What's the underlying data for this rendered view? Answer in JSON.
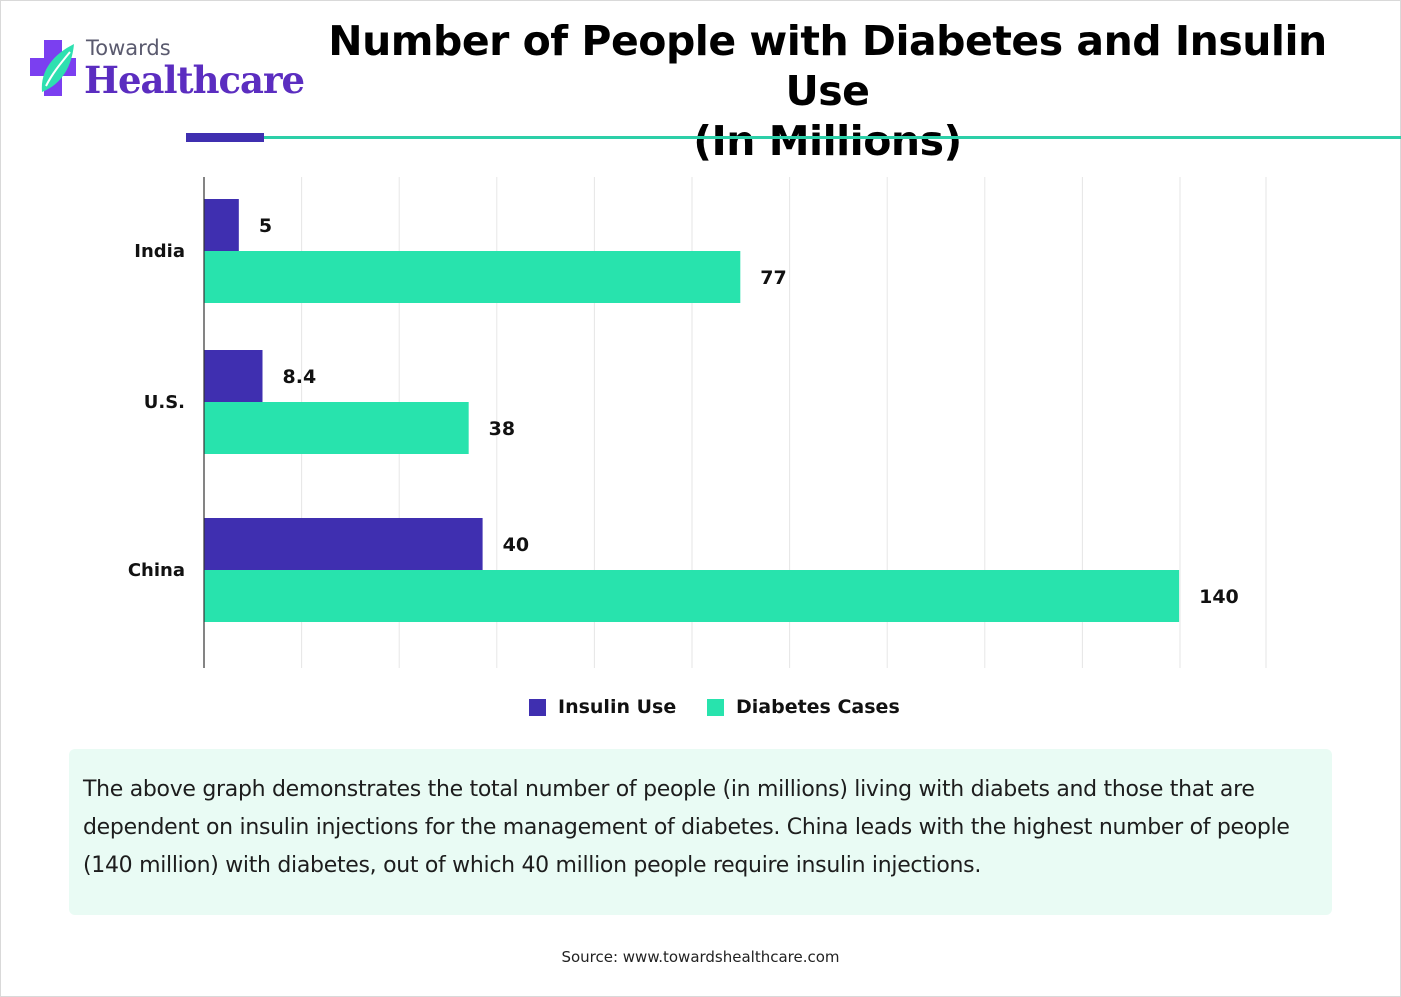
{
  "brand": {
    "line1": "Towards",
    "line2": "Healthcare"
  },
  "colors": {
    "insulin": "#3f2fb0",
    "diabetes": "#28e3ad",
    "accent_teal": "#2ccfa8",
    "note_bg": "#e9fbf4",
    "brand_purple": "#5b2dc0"
  },
  "chart_data": {
    "type": "bar",
    "orientation": "horizontal",
    "title": "Number of People with Diabetes and Insulin Use (In Millions)",
    "title_lines": [
      "Number of People with Diabetes and Insulin Use",
      "(In Millions)"
    ],
    "categories": [
      "India",
      "U.S.",
      "China"
    ],
    "series": [
      {
        "name": "Insulin Use",
        "values": [
          5,
          8.4,
          40
        ],
        "labels": [
          "5",
          "8.4",
          "40"
        ]
      },
      {
        "name": "Diabetes Cases",
        "values": [
          77,
          38,
          140
        ],
        "labels": [
          "77",
          "38",
          "140"
        ]
      }
    ],
    "xlim": [
      0,
      150
    ],
    "grid": true,
    "legend_position": "bottom"
  },
  "description": "The above graph demonstrates the total number of people (in millions) living with diabets and those that are dependent on insulin injections for the management of diabetes. China leads with the highest number of people (140 million) with diabetes, out of which 40 million people require insulin injections.",
  "source": "Source: www.towardshealthcare.com"
}
